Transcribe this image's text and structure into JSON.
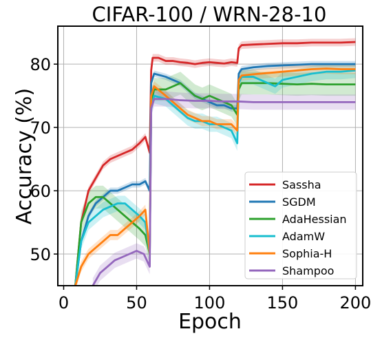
{
  "chart_data": {
    "type": "line",
    "title": "CIFAR-100 / WRN-28-10",
    "xlabel": "Epoch",
    "ylabel": "Accuracy (%)",
    "xlim": [
      -4,
      205
    ],
    "ylim": [
      45,
      86
    ],
    "xticks": [
      0,
      50,
      100,
      150,
      200
    ],
    "yticks": [
      50,
      60,
      70,
      80
    ],
    "grid": true,
    "legend_position": "lower-right",
    "series": [
      {
        "name": "Sassha",
        "color": "#d62728",
        "band": 0.6,
        "points": [
          [
            8,
            45
          ],
          [
            12,
            55
          ],
          [
            17,
            60
          ],
          [
            22,
            62
          ],
          [
            27,
            64
          ],
          [
            32,
            65
          ],
          [
            37,
            65.5
          ],
          [
            42,
            66
          ],
          [
            47,
            66.5
          ],
          [
            52,
            67.5
          ],
          [
            56,
            68.5
          ],
          [
            59,
            66
          ],
          [
            60,
            79
          ],
          [
            61,
            81
          ],
          [
            65,
            81
          ],
          [
            70,
            80.5
          ],
          [
            75,
            80.5
          ],
          [
            80,
            80.3
          ],
          [
            85,
            80.2
          ],
          [
            90,
            80
          ],
          [
            95,
            80.2
          ],
          [
            100,
            80.3
          ],
          [
            105,
            80.2
          ],
          [
            110,
            80.1
          ],
          [
            115,
            80.3
          ],
          [
            119,
            80.2
          ],
          [
            120,
            82.5
          ],
          [
            122,
            83
          ],
          [
            130,
            83.1
          ],
          [
            140,
            83.2
          ],
          [
            150,
            83.3
          ],
          [
            160,
            83.3
          ],
          [
            170,
            83.4
          ],
          [
            180,
            83.4
          ],
          [
            190,
            83.4
          ],
          [
            200,
            83.5
          ]
        ]
      },
      {
        "name": "SGDM",
        "color": "#1f77b4",
        "band": 0.5,
        "points": [
          [
            8,
            45
          ],
          [
            12,
            52
          ],
          [
            17,
            56
          ],
          [
            22,
            58
          ],
          [
            27,
            59
          ],
          [
            32,
            60
          ],
          [
            37,
            60
          ],
          [
            42,
            60.5
          ],
          [
            47,
            61
          ],
          [
            52,
            61
          ],
          [
            56,
            61.5
          ],
          [
            59,
            60
          ],
          [
            60,
            77
          ],
          [
            62,
            78.5
          ],
          [
            70,
            78
          ],
          [
            75,
            77.5
          ],
          [
            80,
            77
          ],
          [
            85,
            76
          ],
          [
            90,
            75
          ],
          [
            95,
            74.5
          ],
          [
            100,
            74
          ],
          [
            105,
            73.5
          ],
          [
            110,
            73.5
          ],
          [
            115,
            73
          ],
          [
            119,
            73
          ],
          [
            120,
            78.5
          ],
          [
            122,
            79.2
          ],
          [
            130,
            79.5
          ],
          [
            140,
            79.7
          ],
          [
            150,
            79.8
          ],
          [
            160,
            79.9
          ],
          [
            170,
            80
          ],
          [
            180,
            80
          ],
          [
            190,
            80
          ],
          [
            200,
            80
          ]
        ]
      },
      {
        "name": "AdaHessian",
        "color": "#2ca02c",
        "band": 1.8,
        "points": [
          [
            8,
            45
          ],
          [
            12,
            55
          ],
          [
            17,
            58
          ],
          [
            22,
            59
          ],
          [
            27,
            59
          ],
          [
            32,
            58
          ],
          [
            37,
            57
          ],
          [
            42,
            56
          ],
          [
            47,
            55
          ],
          [
            52,
            54
          ],
          [
            56,
            53
          ],
          [
            59,
            50
          ],
          [
            60,
            74
          ],
          [
            62,
            76
          ],
          [
            70,
            76
          ],
          [
            75,
            76.5
          ],
          [
            80,
            77
          ],
          [
            85,
            76
          ],
          [
            90,
            75
          ],
          [
            95,
            74.5
          ],
          [
            100,
            75
          ],
          [
            105,
            74.5
          ],
          [
            110,
            74
          ],
          [
            115,
            73.5
          ],
          [
            119,
            72
          ],
          [
            120,
            76
          ],
          [
            122,
            77
          ],
          [
            130,
            77
          ],
          [
            140,
            77
          ],
          [
            150,
            76.9
          ],
          [
            160,
            76.8
          ],
          [
            170,
            76.9
          ],
          [
            180,
            76.8
          ],
          [
            190,
            76.8
          ],
          [
            200,
            76.8
          ]
        ]
      },
      {
        "name": "AdamW",
        "color": "#17becf",
        "band": 1.2,
        "points": [
          [
            8,
            45
          ],
          [
            12,
            52
          ],
          [
            17,
            55
          ],
          [
            22,
            56
          ],
          [
            27,
            57
          ],
          [
            32,
            57.5
          ],
          [
            37,
            58
          ],
          [
            42,
            58
          ],
          [
            47,
            57
          ],
          [
            52,
            56
          ],
          [
            56,
            55
          ],
          [
            59,
            50
          ],
          [
            60,
            73
          ],
          [
            62,
            75
          ],
          [
            70,
            74.5
          ],
          [
            75,
            73.5
          ],
          [
            80,
            72.5
          ],
          [
            85,
            71.5
          ],
          [
            90,
            71
          ],
          [
            95,
            71
          ],
          [
            100,
            70.5
          ],
          [
            105,
            70.5
          ],
          [
            110,
            70
          ],
          [
            115,
            69.5
          ],
          [
            119,
            67.5
          ],
          [
            120,
            77
          ],
          [
            122,
            78
          ],
          [
            130,
            78
          ],
          [
            140,
            77
          ],
          [
            145,
            76.5
          ],
          [
            150,
            77.5
          ],
          [
            160,
            78
          ],
          [
            170,
            78.5
          ],
          [
            180,
            78.8
          ],
          [
            190,
            78.8
          ],
          [
            200,
            79
          ]
        ]
      },
      {
        "name": "Sophia-H",
        "color": "#ff7f0e",
        "band": 0.8,
        "points": [
          [
            8,
            45
          ],
          [
            12,
            48
          ],
          [
            17,
            50
          ],
          [
            22,
            51
          ],
          [
            27,
            52
          ],
          [
            32,
            53
          ],
          [
            37,
            53
          ],
          [
            42,
            54
          ],
          [
            47,
            55
          ],
          [
            52,
            56
          ],
          [
            56,
            57
          ],
          [
            59,
            50
          ],
          [
            60,
            75
          ],
          [
            62,
            76.5
          ],
          [
            70,
            75
          ],
          [
            75,
            74
          ],
          [
            80,
            73
          ],
          [
            85,
            72
          ],
          [
            90,
            71.5
          ],
          [
            95,
            71
          ],
          [
            100,
            71
          ],
          [
            105,
            70.5
          ],
          [
            110,
            70.5
          ],
          [
            115,
            70.5
          ],
          [
            119,
            69.5
          ],
          [
            120,
            77.5
          ],
          [
            122,
            78.2
          ],
          [
            130,
            78.4
          ],
          [
            140,
            78.6
          ],
          [
            150,
            78.8
          ],
          [
            160,
            79
          ],
          [
            170,
            79.2
          ],
          [
            180,
            79.3
          ],
          [
            190,
            79.2
          ],
          [
            200,
            79.2
          ]
        ]
      },
      {
        "name": "Shampoo",
        "color": "#9467bd",
        "band": 1.2,
        "points": [
          [
            20,
            45
          ],
          [
            25,
            47
          ],
          [
            30,
            48
          ],
          [
            35,
            49
          ],
          [
            40,
            49.5
          ],
          [
            45,
            50
          ],
          [
            50,
            50.5
          ],
          [
            55,
            50
          ],
          [
            59,
            48
          ],
          [
            60,
            73
          ],
          [
            62,
            74.5
          ],
          [
            70,
            74.5
          ],
          [
            80,
            74.3
          ],
          [
            90,
            74.2
          ],
          [
            100,
            74.2
          ],
          [
            110,
            74.1
          ],
          [
            120,
            74.1
          ],
          [
            130,
            74
          ],
          [
            140,
            74
          ],
          [
            150,
            74
          ],
          [
            160,
            74
          ],
          [
            170,
            74
          ],
          [
            180,
            74
          ],
          [
            190,
            74
          ],
          [
            200,
            74
          ]
        ]
      }
    ]
  }
}
